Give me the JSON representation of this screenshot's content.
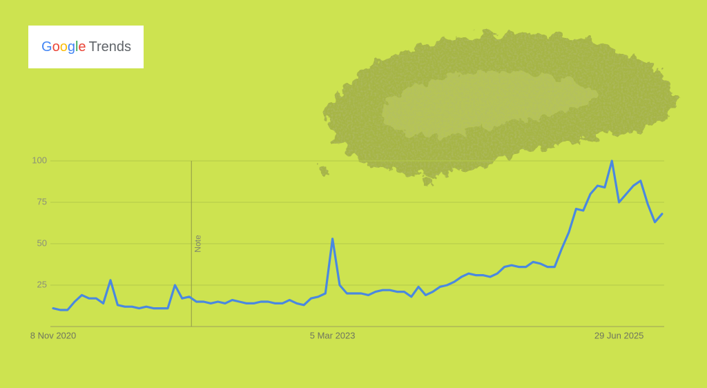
{
  "logo": {
    "brand": "Google",
    "product": "Trends"
  },
  "chart_data": {
    "type": "line",
    "annotation": "Note",
    "categories": [
      "8 Nov 2020",
      null,
      null,
      null,
      null,
      null,
      null,
      null,
      null,
      null,
      null,
      null,
      null,
      null,
      null,
      null,
      null,
      null,
      null,
      null,
      null,
      null,
      null,
      null,
      null,
      null,
      null,
      null,
      null,
      null,
      null,
      null,
      null,
      null,
      null,
      null,
      null,
      null,
      null,
      "5 Mar 2023",
      null,
      null,
      null,
      null,
      null,
      null,
      null,
      null,
      null,
      null,
      null,
      null,
      null,
      null,
      null,
      null,
      null,
      null,
      null,
      null,
      null,
      null,
      null,
      null,
      null,
      null,
      null,
      null,
      null,
      null,
      null,
      null,
      null,
      null,
      null,
      null,
      null,
      null,
      null,
      "29 Jun 2025",
      null,
      null,
      null,
      null,
      null,
      null
    ],
    "series": [
      {
        "color": "#4a88e0",
        "values": [
          11,
          10,
          10,
          15,
          19,
          17,
          17,
          14,
          28,
          13,
          12,
          12,
          11,
          12,
          11,
          11,
          11,
          25,
          17,
          18,
          15,
          15,
          14,
          15,
          14,
          16,
          15,
          14,
          14,
          15,
          15,
          14,
          14,
          16,
          14,
          13,
          17,
          18,
          20,
          53,
          25,
          20,
          20,
          20,
          19,
          21,
          22,
          22,
          21,
          21,
          18,
          24,
          19,
          21,
          24,
          25,
          27,
          30,
          32,
          31,
          31,
          30,
          32,
          36,
          37,
          36,
          36,
          39,
          38,
          36,
          36,
          47,
          57,
          71,
          70,
          80,
          85,
          84,
          100,
          75,
          80,
          85,
          88,
          74,
          63,
          68
        ]
      }
    ],
    "ylim": [
      0,
      100
    ],
    "yticks": [
      25,
      50,
      75,
      100
    ],
    "grid": true
  }
}
